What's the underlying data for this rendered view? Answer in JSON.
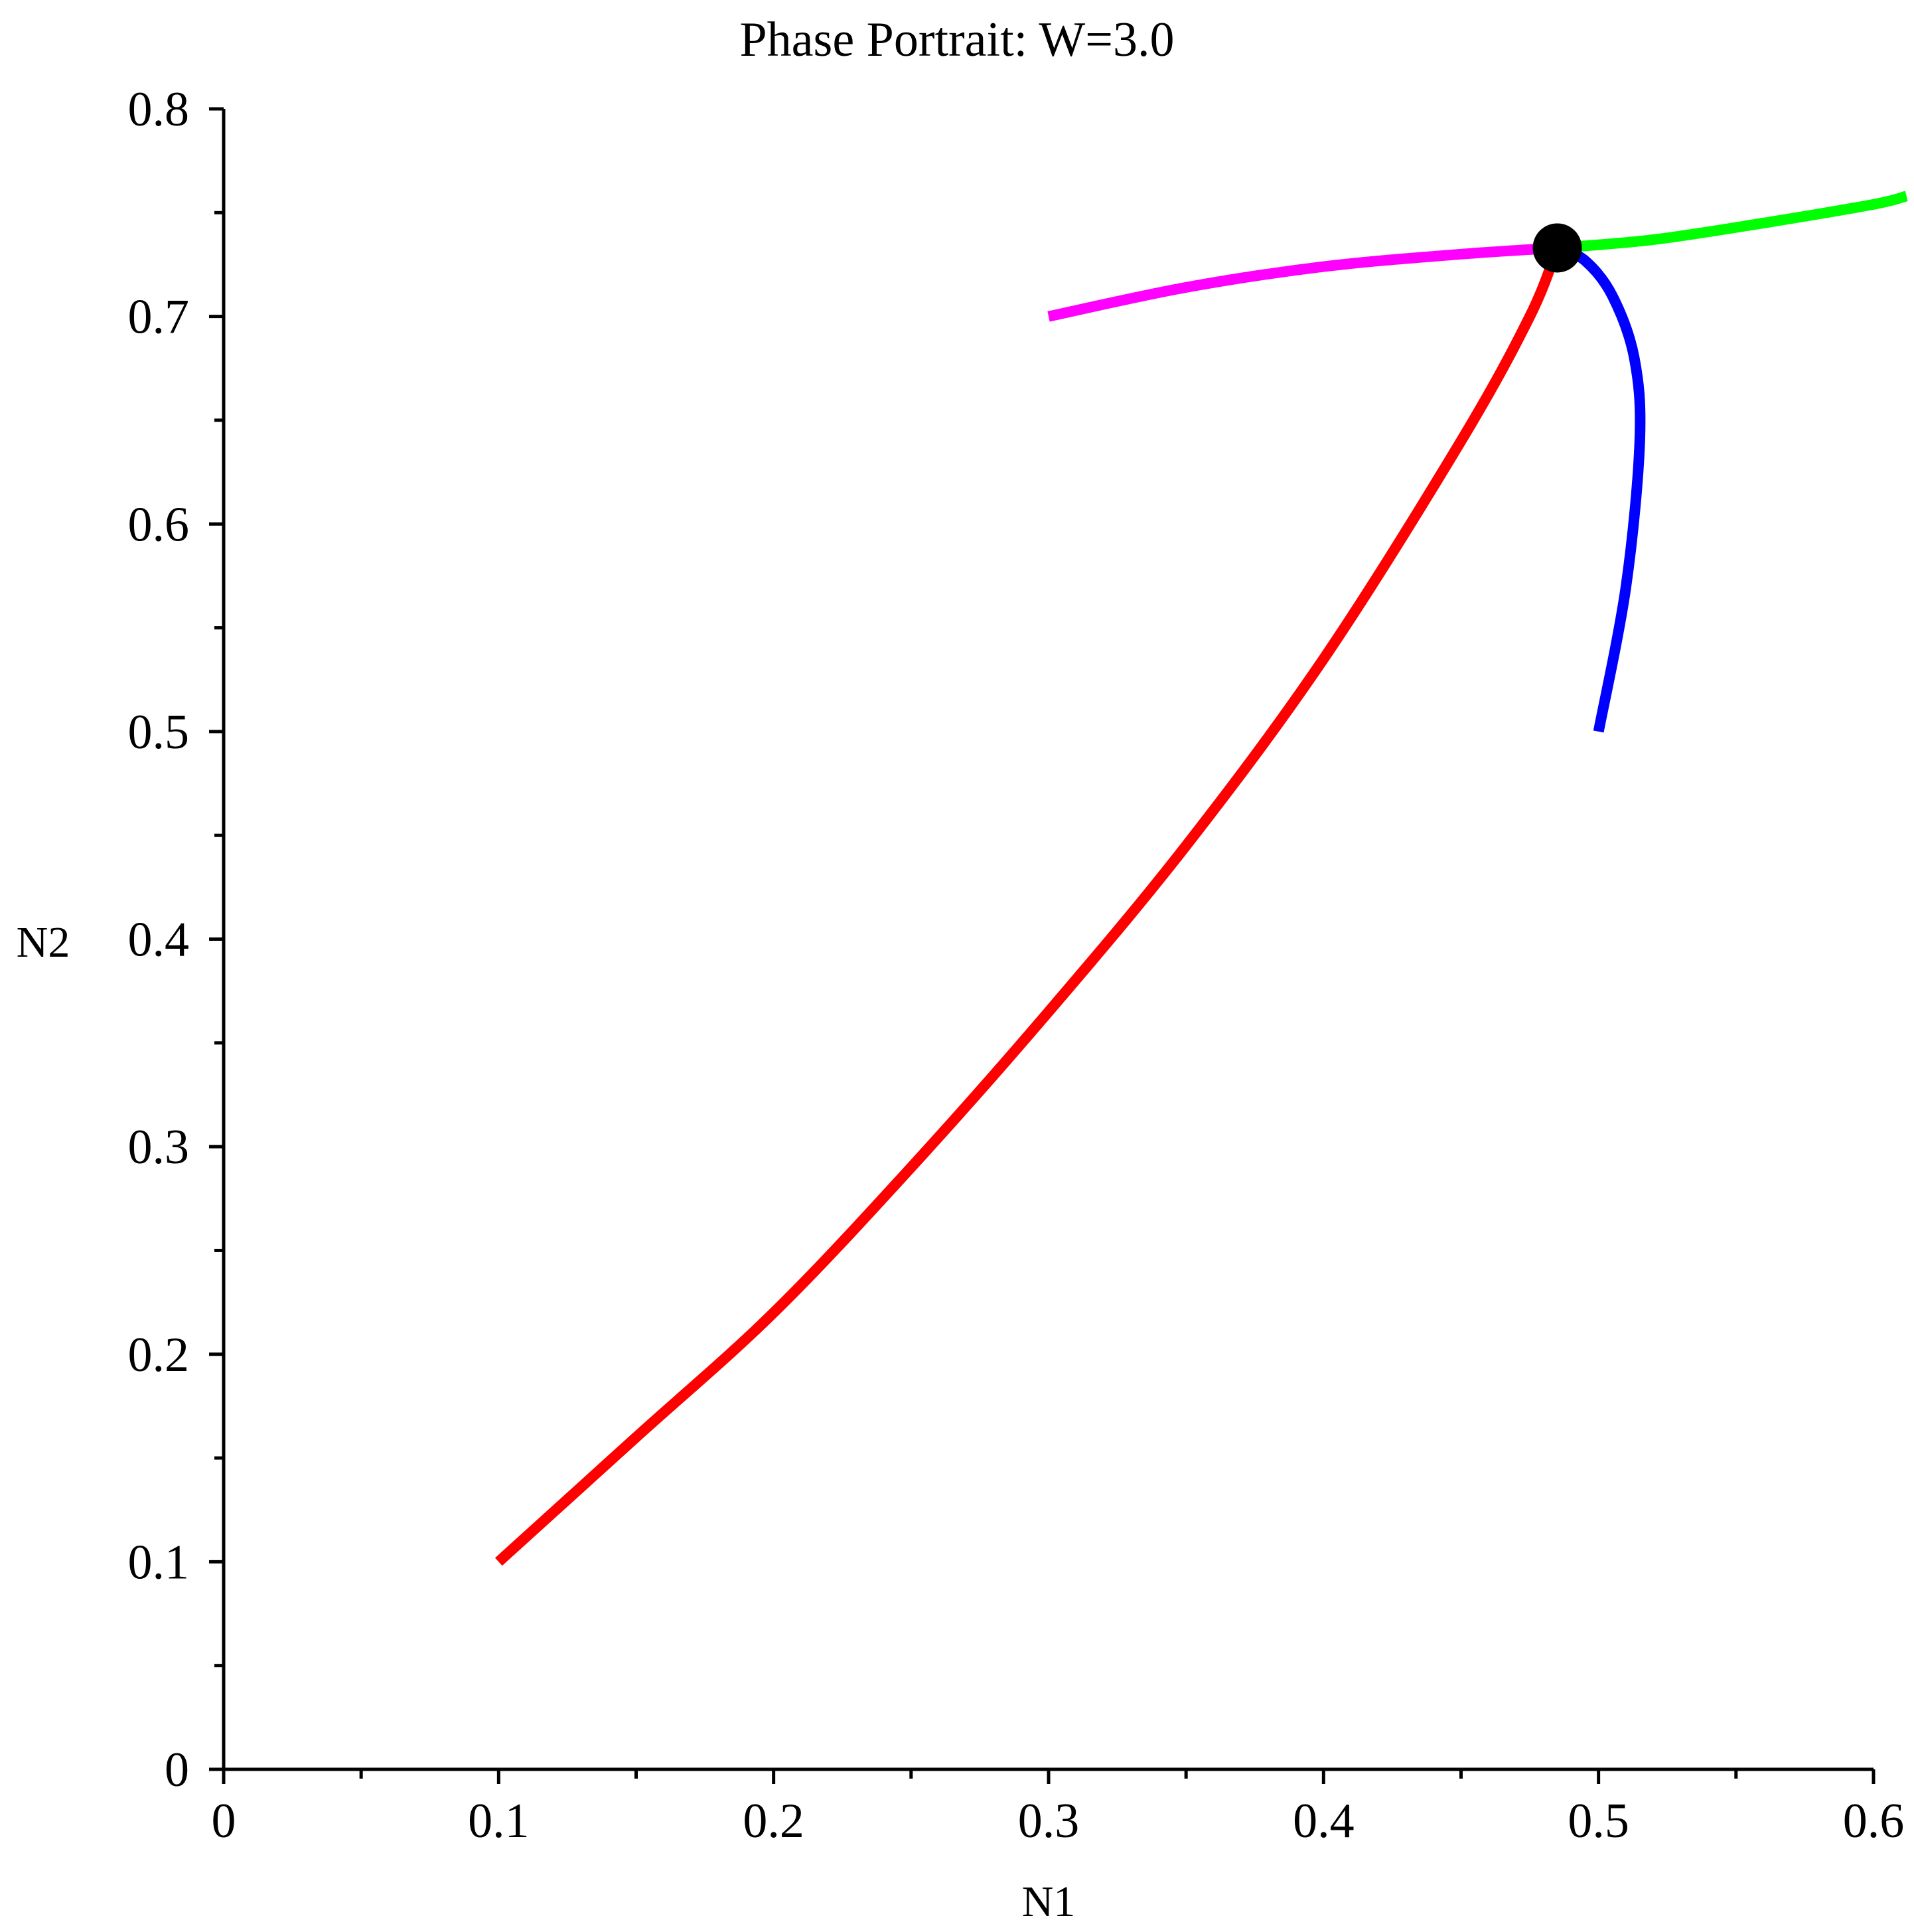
{
  "chart_data": {
    "type": "line",
    "title": "Phase Portrait: W=3.0",
    "xlabel": "N1",
    "ylabel": "N2",
    "xlim": [
      0,
      0.6
    ],
    "ylim": [
      0,
      0.8
    ],
    "x_ticks": [
      0,
      0.1,
      0.2,
      0.3,
      0.4,
      0.5,
      0.6
    ],
    "y_ticks": [
      0,
      0.1,
      0.2,
      0.3,
      0.4,
      0.5,
      0.6,
      0.7,
      0.8
    ],
    "x_tick_labels": [
      "0",
      "0.1",
      "0.2",
      "0.3",
      "0.4",
      "0.5",
      "0.6"
    ],
    "y_tick_labels": [
      "0",
      "0.1",
      "0.2",
      "0.3",
      "0.4",
      "0.5",
      "0.6",
      "0.7",
      "0.8"
    ],
    "x_minor_step": 0.05,
    "y_minor_step": 0.05,
    "grid": false,
    "legend": "none",
    "series": [
      {
        "color": "#ff0000",
        "points": [
          [
            0.1,
            0.1
          ],
          [
            0.15,
            0.16
          ],
          [
            0.2,
            0.22
          ],
          [
            0.25,
            0.29
          ],
          [
            0.3,
            0.365
          ],
          [
            0.35,
            0.445
          ],
          [
            0.4,
            0.535
          ],
          [
            0.45,
            0.64
          ],
          [
            0.475,
            0.7
          ],
          [
            0.485,
            0.733
          ]
        ]
      },
      {
        "color": "#0000ff",
        "points": [
          [
            0.5,
            0.5
          ],
          [
            0.51,
            0.57
          ],
          [
            0.515,
            0.64
          ],
          [
            0.513,
            0.68
          ],
          [
            0.505,
            0.71
          ],
          [
            0.495,
            0.727
          ],
          [
            0.485,
            0.733
          ]
        ]
      },
      {
        "color": "#ff00ff",
        "points": [
          [
            0.3,
            0.7
          ],
          [
            0.35,
            0.714
          ],
          [
            0.4,
            0.724
          ],
          [
            0.45,
            0.73
          ],
          [
            0.485,
            0.733
          ]
        ]
      },
      {
        "color": "#00ff00",
        "points": [
          [
            0.485,
            0.733
          ],
          [
            0.52,
            0.737
          ],
          [
            0.56,
            0.745
          ],
          [
            0.6,
            0.754
          ],
          [
            0.612,
            0.758
          ]
        ]
      }
    ],
    "equilibrium": {
      "x": 0.485,
      "y": 0.733,
      "color": "#000000"
    }
  }
}
